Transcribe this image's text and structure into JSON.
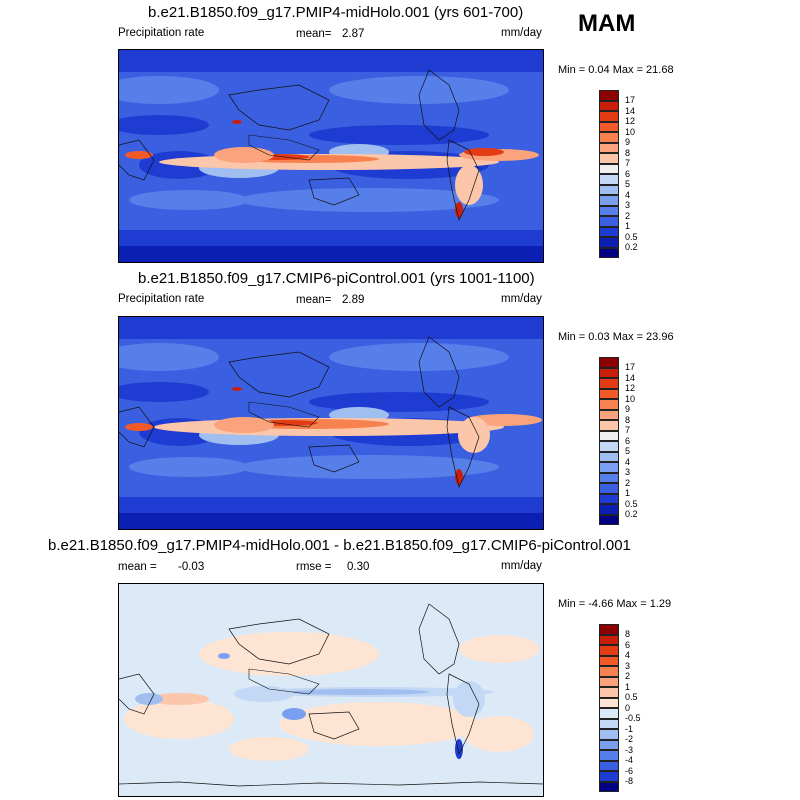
{
  "season": "MAM",
  "panels": [
    {
      "title": "b.e21.B1850.f09_g17.PMIP4-midHolo.001 (yrs 601-700)",
      "variable": "Precipitation rate",
      "mean_label": "mean=",
      "mean_value": "2.87",
      "units": "mm/day",
      "minmax": "Min =   0.04 Max =  21.68",
      "levels": [
        "17",
        "14",
        "12",
        "10",
        "9",
        "8",
        "7",
        "6",
        "5",
        "4",
        "3",
        "2",
        "1",
        "0.5",
        "0.2"
      ],
      "colors": [
        "#8b0000",
        "#c81e0a",
        "#e33b14",
        "#f25a2a",
        "#f7814f",
        "#fba37c",
        "#fcc6aa",
        "#f0f0f0",
        "#c3d8f5",
        "#a0bff0",
        "#7b9ff0",
        "#577fea",
        "#3a5fe0",
        "#1f3cd2",
        "#0c1fb3",
        "#000080"
      ]
    },
    {
      "title": "b.e21.B1850.f09_g17.CMIP6-piControl.001 (yrs 1001-1100)",
      "variable": "Precipitation rate",
      "mean_label": "mean=",
      "mean_value": "2.89",
      "units": "mm/day",
      "minmax": "Min =   0.03 Max =  23.96",
      "levels": [
        "17",
        "14",
        "12",
        "10",
        "9",
        "8",
        "7",
        "6",
        "5",
        "4",
        "3",
        "2",
        "1",
        "0.5",
        "0.2"
      ],
      "colors": [
        "#8b0000",
        "#c81e0a",
        "#e33b14",
        "#f25a2a",
        "#f7814f",
        "#fba37c",
        "#fcc6aa",
        "#f0f0f0",
        "#c3d8f5",
        "#a0bff0",
        "#7b9ff0",
        "#577fea",
        "#3a5fe0",
        "#1f3cd2",
        "#0c1fb3",
        "#000080"
      ]
    },
    {
      "title": "b.e21.B1850.f09_g17.PMIP4-midHolo.001 - b.e21.B1850.f09_g17.CMIP6-piControl.001",
      "mean_label": "mean =",
      "mean_value": "-0.03",
      "rmse_label": "rmse =",
      "rmse_value": "0.30",
      "units": "mm/day",
      "minmax": "Min =  -4.66 Max =   1.29",
      "levels": [
        "8",
        "6",
        "4",
        "3",
        "2",
        "1",
        "0.5",
        "0",
        "-0.5",
        "-1",
        "-2",
        "-3",
        "-4",
        "-6",
        "-8"
      ],
      "colors": [
        "#8b0000",
        "#c81e0a",
        "#e33b14",
        "#f25a2a",
        "#f7814f",
        "#fba37c",
        "#fcc6aa",
        "#fde4d3",
        "#dceaf8",
        "#c3d8f5",
        "#a0bff0",
        "#7b9ff0",
        "#577fea",
        "#3a5fe0",
        "#1f3cd2",
        "#000080"
      ]
    }
  ]
}
